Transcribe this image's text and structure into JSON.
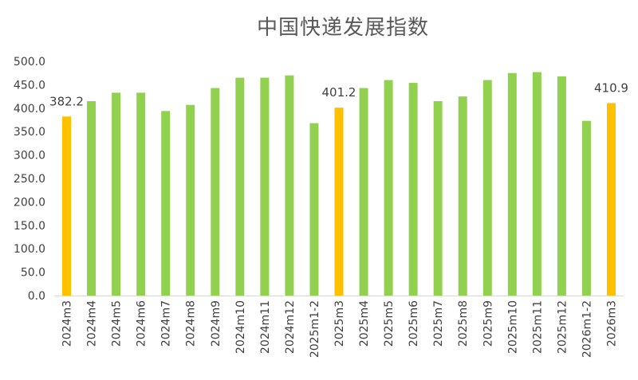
{
  "chart_data": {
    "type": "bar",
    "title": "中国快递发展指数",
    "xlabel": "",
    "ylabel": "",
    "ylim": [
      0,
      500
    ],
    "yticks": [
      "0.0",
      "50.0",
      "100.0",
      "150.0",
      "200.0",
      "250.0",
      "300.0",
      "350.0",
      "400.0",
      "450.0",
      "500.0"
    ],
    "grid": false,
    "legend": "none",
    "categories": [
      "2024m3",
      "2024m4",
      "2024m5",
      "2024m6",
      "2024m7",
      "2024m8",
      "2024m9",
      "2024m10",
      "2024m11",
      "2024m12",
      "2025m1-2",
      "2025m3",
      "2025m4",
      "2025m5",
      "2025m6",
      "2025m7",
      "2025m8",
      "2025m9",
      "2025m10",
      "2025m11",
      "2025m12",
      "2026m1-2",
      "2026m3"
    ],
    "values": [
      382.2,
      415,
      433,
      433,
      394,
      407,
      443,
      465,
      465,
      470,
      368,
      401.2,
      443,
      460,
      454,
      415,
      425,
      460,
      475,
      477,
      468,
      373,
      410.9
    ],
    "highlighted": [
      0,
      11,
      22
    ],
    "data_labels": [
      {
        "index": 0,
        "text": "382.2"
      },
      {
        "index": 11,
        "text": "401.2"
      },
      {
        "index": 22,
        "text": "410.9"
      }
    ],
    "colors": {
      "bar": "#92D050",
      "highlight": "#FFC000",
      "axis": "#D9D9D9",
      "text": "#404040"
    }
  }
}
